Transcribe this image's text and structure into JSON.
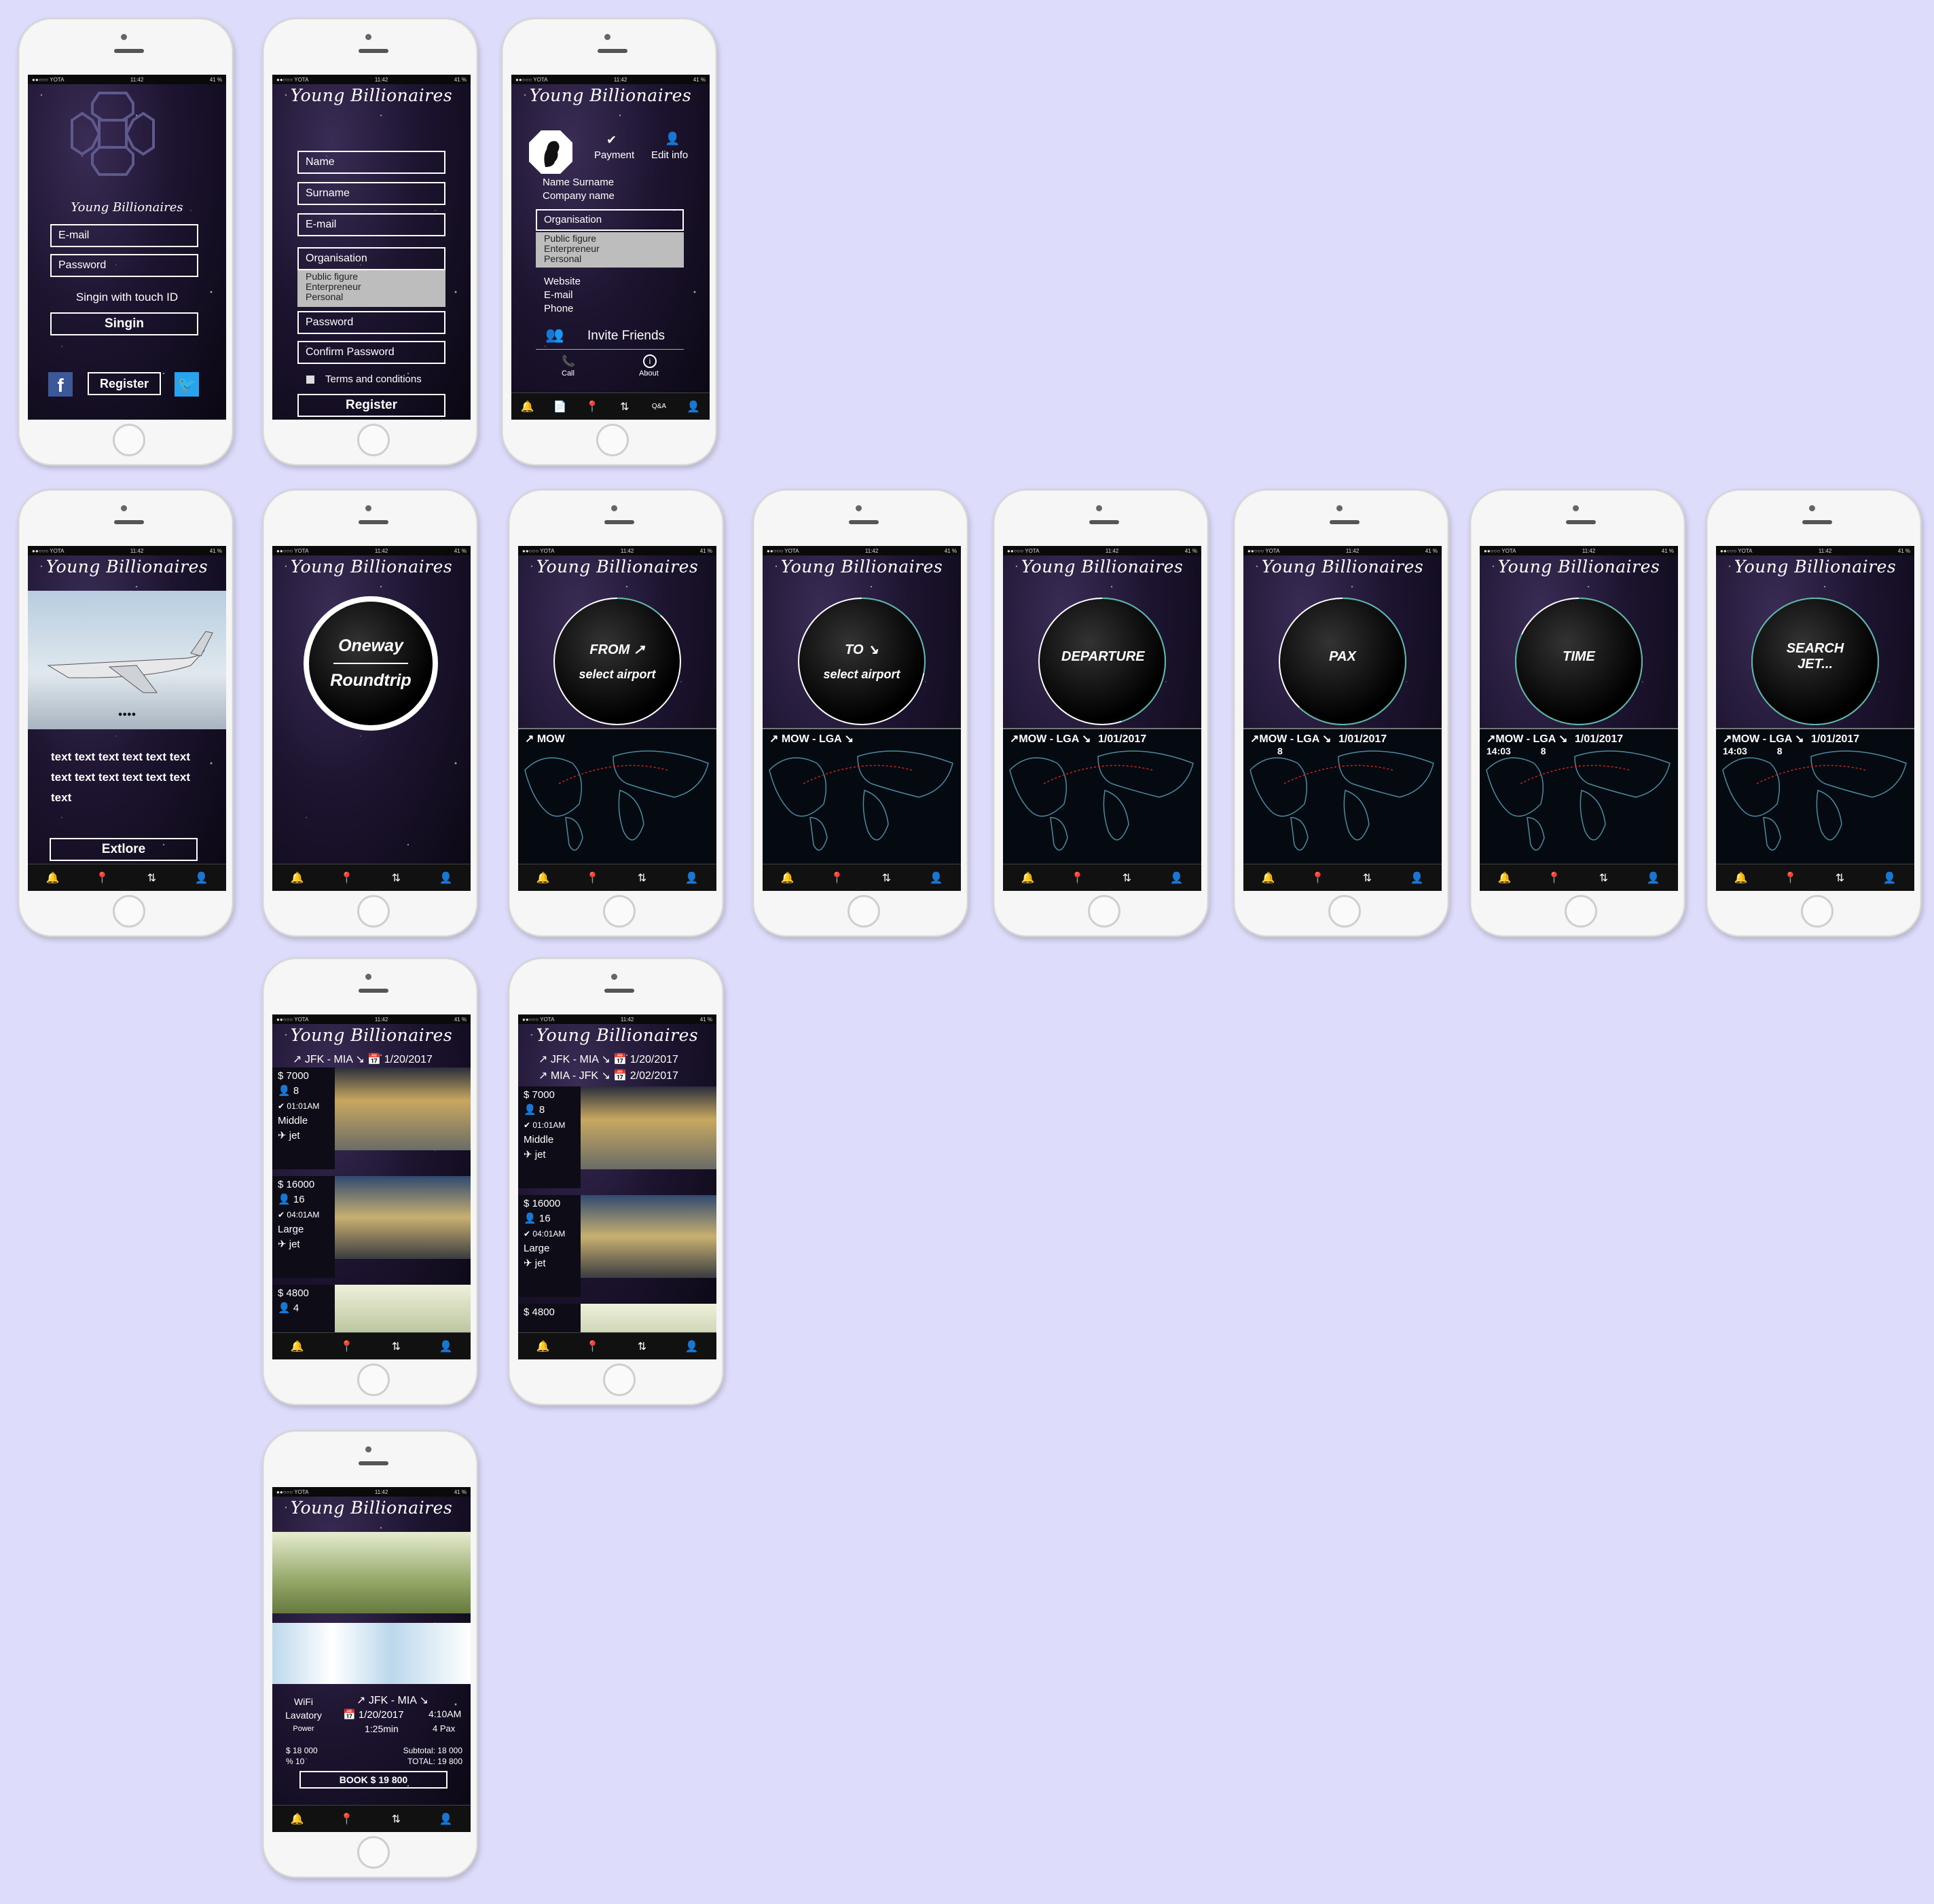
{
  "app_title": "Young Billionaires",
  "status": {
    "carrier": "●●○○○ YOTA",
    "time": "11:42",
    "battery": "41 %"
  },
  "login": {
    "email_placeholder": "E-mail",
    "password_placeholder": "Password",
    "touch_id": "Singin with touch ID",
    "signin": "Singin",
    "register": "Register"
  },
  "register": {
    "name": "Name",
    "surname": "Surname",
    "email": "E-mail",
    "organisation": "Organisation",
    "org_options": [
      "Public figure",
      "Enterpreneur",
      "Personal"
    ],
    "password": "Password",
    "confirm": "Confirm Password",
    "terms": "Terms and conditions",
    "register": "Register"
  },
  "profile": {
    "payment": "Payment",
    "edit": "Edit info",
    "name_surname": "Name  Surname",
    "company": "Company name",
    "organisation": "Organisation",
    "org_options": [
      "Public figure",
      "Enterpreneur",
      "Personal"
    ],
    "website": "Website",
    "email": "E-mail",
    "phone": "Phone",
    "invite": "Invite Friends",
    "call": "Call",
    "about": "About",
    "qa": "Q&A"
  },
  "explore": {
    "body": "text text text text text text text text text text text text text",
    "button": "Extlore",
    "dots": "●●●●"
  },
  "trip": {
    "oneway": "Oneway",
    "roundtrip": "Roundtrip"
  },
  "steps": [
    {
      "label": "FROM ↗",
      "sub": "select airport",
      "route": "↗ MOW",
      "date": "",
      "pax": "",
      "time": "",
      "progress": 0.12
    },
    {
      "label": "TO ↘",
      "sub": "select airport",
      "route": "↗ MOW - LGA ↘",
      "date": "",
      "pax": "",
      "time": "",
      "progress": 0.28
    },
    {
      "label": "DEPARTURE",
      "sub": "",
      "route": "↗MOW - LGA ↘",
      "date": "1/01/2017",
      "pax": "",
      "time": "",
      "progress": 0.45
    },
    {
      "label": "PAX",
      "sub": "",
      "route": "↗MOW - LGA ↘",
      "date": "1/01/2017",
      "pax": "8",
      "time": "",
      "progress": 0.62
    },
    {
      "label": "TIME",
      "sub": "",
      "route": "↗MOW - LGA ↘",
      "date": "1/01/2017",
      "pax": "8",
      "time": "14:03",
      "progress": 0.82
    },
    {
      "label": "SEARCH JET...",
      "sub": "",
      "route": "↗MOW - LGA ↘",
      "date": "1/01/2017",
      "pax": "8",
      "time": "14:03",
      "progress": 1.0
    }
  ],
  "results": {
    "route1": "↗ JFK - MIA ↘",
    "date1": "1/20/2017",
    "route2": "↗ MIA - JFK ↘",
    "date2": "2/02/2017",
    "jets": [
      {
        "price": "$  7000",
        "pax": "8",
        "time": "01:01AM",
        "class1": "Middle",
        "class2": "jet"
      },
      {
        "price": "$  16000",
        "pax": "16",
        "time": "04:01AM",
        "class1": "Large",
        "class2": "jet"
      },
      {
        "price": "$  4800",
        "pax": "4",
        "time": "",
        "class1": "",
        "class2": ""
      }
    ]
  },
  "booking": {
    "wifi": "WiFi",
    "lavatory": "Lavatory",
    "power": "Power",
    "route": "↗ JFK - MIA ↘",
    "date": "1/20/2017",
    "time": "4:10AM",
    "duration": "1:25min",
    "pax": "4 Pax",
    "price": "$ 18 000",
    "discount": "% 10",
    "subtotal": "Subtotal: 18 000",
    "total": "TOTAL: 19 800",
    "book": "BOOK  $ 19 800"
  },
  "colors": {
    "bg": "#dddcfa",
    "accent": "#5bb5a8",
    "dark": "#0a0712"
  }
}
